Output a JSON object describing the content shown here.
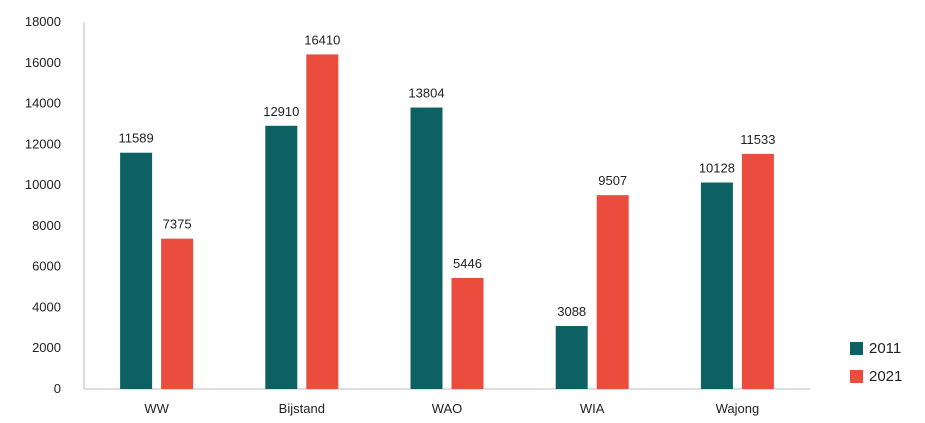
{
  "chart_data": {
    "type": "bar",
    "categories": [
      "WW",
      "Bijstand",
      "WAO",
      "WIA",
      "Wajong"
    ],
    "series": [
      {
        "name": "2011",
        "color": "#0e6163",
        "values": [
          11589,
          12910,
          13804,
          3088,
          10128
        ]
      },
      {
        "name": "2021",
        "color": "#ea4d3d",
        "values": [
          7375,
          16410,
          5446,
          9507,
          11533
        ]
      }
    ],
    "yticks": [
      0,
      2000,
      4000,
      6000,
      8000,
      10000,
      12000,
      14000,
      16000,
      18000
    ],
    "ylim": [
      0,
      18000
    ],
    "grid": false,
    "legend_position": "bottom-right",
    "title": "",
    "xlabel": "",
    "ylabel": ""
  }
}
